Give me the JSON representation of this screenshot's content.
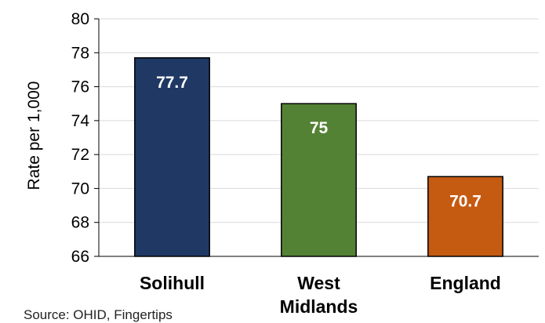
{
  "chart_data": {
    "type": "bar",
    "categories": [
      "Solihull",
      "West Midlands",
      "England"
    ],
    "values": [
      77.7,
      75,
      70.7
    ],
    "data_labels": [
      "77.7",
      "75",
      "70.7"
    ],
    "colors": [
      "#203864",
      "#548235",
      "#c55a11"
    ],
    "title": "",
    "xlabel": "",
    "ylabel": "Rate per 1,000",
    "ylim": [
      66,
      80
    ],
    "yticks": [
      66,
      68,
      70,
      72,
      74,
      76,
      78,
      80
    ],
    "grid": true,
    "legend": "none"
  },
  "source_text": "Source: OHID, Fingertips"
}
